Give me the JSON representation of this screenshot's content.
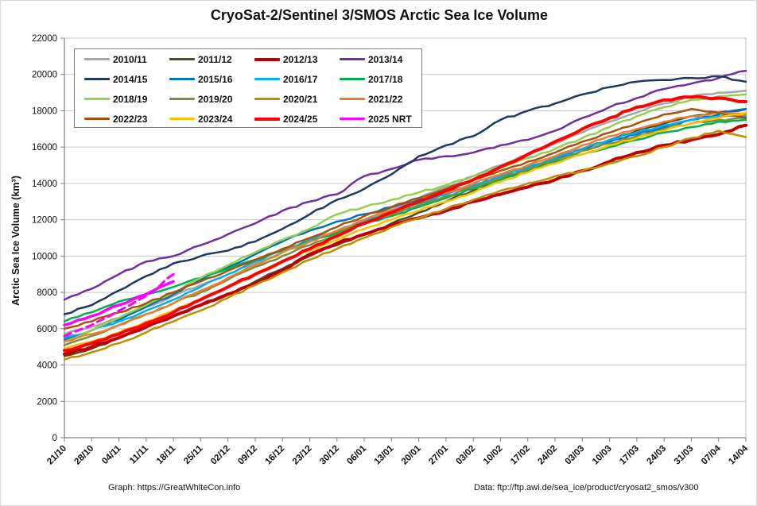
{
  "title": "CryoSat-2/Sentinel 3/SMOS Arctic Sea Ice Volume",
  "footer": {
    "left": "Graph: https://GreatWhiteCon.info",
    "right": "Data: ftp://ftp.awi.de/sea_ice/product/cryosat2_smos/v300"
  },
  "chart_data": {
    "type": "line",
    "title": "CryoSat-2/Sentinel 3/SMOS Arctic Sea Ice Volume",
    "ylabel": "Arctic Sea Ice Volume (km³)",
    "xlabel": "",
    "ylim": [
      0,
      22000
    ],
    "ytick_step": 2000,
    "yticks": [
      "0",
      "2000",
      "4000",
      "6000",
      "8000",
      "10000",
      "12000",
      "14000",
      "16000",
      "18000",
      "20000",
      "22000"
    ],
    "grid": true,
    "legend_position": "top-left",
    "x": [
      "21/10",
      "28/10",
      "04/11",
      "11/11",
      "18/11",
      "25/11",
      "02/12",
      "09/12",
      "16/12",
      "23/12",
      "30/12",
      "06/01",
      "13/01",
      "20/01",
      "27/01",
      "03/02",
      "10/02",
      "17/02",
      "24/02",
      "03/03",
      "10/03",
      "17/03",
      "24/03",
      "31/03",
      "07/04",
      "14/04"
    ],
    "series": [
      {
        "name": "2010/11",
        "color": "#A6A6A6",
        "width": 2.5,
        "values": [
          5700,
          6100,
          6600,
          7200,
          7800,
          8400,
          9000,
          9600,
          10200,
          10800,
          11400,
          12000,
          12600,
          13200,
          13800,
          14400,
          15000,
          15600,
          16200,
          16800,
          17400,
          17900,
          18400,
          18800,
          19000,
          19100
        ]
      },
      {
        "name": "2011/12",
        "color": "#4F4B24",
        "width": 2.5,
        "values": [
          4500,
          4900,
          5500,
          6100,
          6700,
          7300,
          7900,
          8600,
          9300,
          10000,
          10600,
          11200,
          11800,
          12400,
          13000,
          13600,
          14200,
          14700,
          15300,
          15900,
          16400,
          16900,
          17300,
          17700,
          17900,
          18100
        ]
      },
      {
        "name": "2012/13",
        "color": "#C00000",
        "width": 4,
        "values": [
          4600,
          5000,
          5500,
          6100,
          6700,
          7300,
          7900,
          8500,
          9200,
          10100,
          10700,
          11200,
          11700,
          12100,
          12500,
          13000,
          13400,
          13800,
          14200,
          14700,
          15200,
          15700,
          16100,
          16400,
          16700,
          17200
        ]
      },
      {
        "name": "2013/14",
        "color": "#7030A0",
        "width": 2.5,
        "values": [
          7600,
          8200,
          9000,
          9700,
          10000,
          10600,
          11200,
          11800,
          12500,
          13000,
          13400,
          14400,
          14800,
          15300,
          15500,
          15700,
          16100,
          16400,
          16900,
          17600,
          18200,
          18700,
          19200,
          19500,
          19800,
          20200
        ]
      },
      {
        "name": "2014/15",
        "color": "#1F3864",
        "width": 2.5,
        "values": [
          6800,
          7300,
          8100,
          8900,
          9600,
          10000,
          10300,
          10800,
          11500,
          12300,
          13100,
          13700,
          14500,
          15500,
          16100,
          16600,
          17500,
          18000,
          18400,
          18900,
          19300,
          19600,
          19700,
          19800,
          19900,
          19600
        ]
      },
      {
        "name": "2015/16",
        "color": "#0070C0",
        "width": 2.5,
        "values": [
          5400,
          5900,
          6500,
          7200,
          7900,
          8700,
          9400,
          10100,
          10800,
          11400,
          11900,
          12300,
          12700,
          13100,
          13500,
          13900,
          14300,
          14800,
          15300,
          15800,
          16300,
          16700,
          17100,
          17500,
          17800,
          18100
        ]
      },
      {
        "name": "2016/17",
        "color": "#00B0F0",
        "width": 2.5,
        "values": [
          5500,
          5900,
          6400,
          7000,
          7600,
          8300,
          9000,
          9700,
          10300,
          10900,
          11400,
          11900,
          12400,
          12900,
          13400,
          13900,
          14400,
          14900,
          15400,
          15900,
          16400,
          16800,
          17200,
          17500,
          17700,
          17700
        ]
      },
      {
        "name": "2017/18",
        "color": "#00B050",
        "width": 2.5,
        "values": [
          6400,
          6900,
          7500,
          7900,
          8300,
          8800,
          9300,
          9800,
          10300,
          10800,
          11300,
          11800,
          12200,
          12700,
          13200,
          13700,
          14200,
          14700,
          15200,
          15600,
          16000,
          16400,
          16800,
          17100,
          17400,
          17500
        ]
      },
      {
        "name": "2018/19",
        "color": "#92D050",
        "width": 2.5,
        "values": [
          5300,
          5900,
          6600,
          7300,
          8000,
          8800,
          9500,
          10200,
          10900,
          11500,
          12300,
          12700,
          13100,
          13500,
          13900,
          14400,
          14900,
          15400,
          15900,
          16500,
          17100,
          17700,
          18200,
          18600,
          18800,
          18900
        ]
      },
      {
        "name": "2019/20",
        "color": "#76923C",
        "width": 2.5,
        "values": [
          5100,
          5600,
          6200,
          6800,
          7400,
          8000,
          8700,
          9400,
          10000,
          10600,
          11200,
          11800,
          12300,
          12800,
          13300,
          13800,
          14300,
          14800,
          15300,
          15800,
          16200,
          16600,
          17000,
          17300,
          17500,
          17600
        ]
      },
      {
        "name": "2020/21",
        "color": "#BF8F00",
        "width": 2.5,
        "values": [
          4300,
          4700,
          5200,
          5800,
          6400,
          7000,
          7700,
          8400,
          9100,
          9800,
          10400,
          11000,
          11600,
          12100,
          12600,
          13100,
          13600,
          14000,
          14400,
          14700,
          15100,
          15500,
          16000,
          16500,
          16900,
          16550
        ]
      },
      {
        "name": "2021/22",
        "color": "#ED7D31",
        "width": 2.5,
        "values": [
          5300,
          5700,
          6200,
          6800,
          7400,
          8100,
          8800,
          9500,
          10200,
          10800,
          11400,
          12000,
          12500,
          13000,
          13500,
          14000,
          14500,
          15000,
          15500,
          16100,
          16600,
          17000,
          17400,
          17700,
          17900,
          17800
        ]
      },
      {
        "name": "2022/23",
        "color": "#A9520D",
        "width": 2.5,
        "values": [
          6000,
          6400,
          6900,
          7400,
          8000,
          8600,
          9200,
          9800,
          10400,
          11000,
          11600,
          12200,
          12700,
          13200,
          13700,
          14200,
          14700,
          15200,
          15700,
          16300,
          16800,
          17300,
          17800,
          18100,
          17900,
          17600
        ]
      },
      {
        "name": "2023/24",
        "color": "#FFC000",
        "width": 2.5,
        "values": [
          4900,
          5300,
          5800,
          6400,
          7000,
          7600,
          8300,
          9000,
          9700,
          10300,
          10900,
          11500,
          12000,
          12500,
          13000,
          13500,
          14100,
          14600,
          15100,
          15600,
          16100,
          16500,
          16900,
          17300,
          17600,
          17900
        ]
      },
      {
        "name": "2024/25",
        "color": "#FF0000",
        "width": 4,
        "values": [
          4800,
          5200,
          5700,
          6300,
          6900,
          7600,
          8300,
          9000,
          9700,
          10400,
          11100,
          11800,
          12400,
          13000,
          13600,
          14200,
          14900,
          15600,
          16300,
          17000,
          17600,
          18200,
          18600,
          18750,
          18700,
          18500
        ]
      },
      {
        "name": "2025 NRT",
        "color": "#FF00FF",
        "width": 3.5,
        "values": [
          6200,
          6700,
          7300,
          7900,
          8600
        ],
        "extra_dashed_values": [
          5600,
          6200,
          7000,
          7800,
          9000
        ]
      }
    ]
  }
}
